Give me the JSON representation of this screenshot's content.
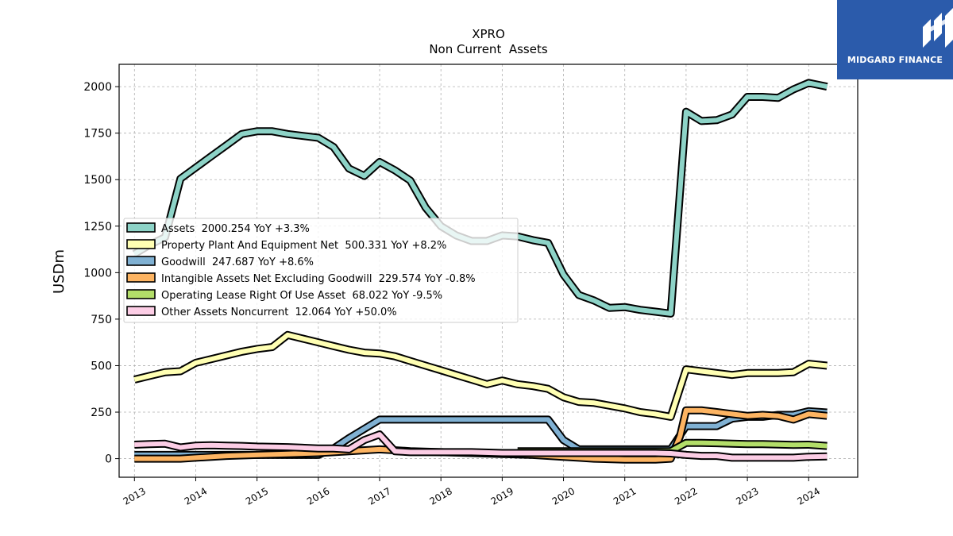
{
  "chart_data": {
    "type": "line",
    "title": "XPRO",
    "subtitle": "Non Current  Assets",
    "ylabel": "USDm",
    "xlabel": "",
    "xlim": [
      2012.75,
      2024.8
    ],
    "ylim": [
      -100,
      2120
    ],
    "yticks": [
      0,
      250,
      500,
      750,
      1000,
      1250,
      1500,
      1750,
      2000
    ],
    "xticks": [
      "2013",
      "2014",
      "2015",
      "2016",
      "2017",
      "2018",
      "2019",
      "2020",
      "2021",
      "2022",
      "2023",
      "2024"
    ],
    "grid": true,
    "legend_position": "center-left",
    "series": [
      {
        "name": "Assets",
        "legend": "Assets  2000.254 YoY +3.3%",
        "color": "#8dd3c7",
        "x": [
          2013.0,
          2013.25,
          2013.5,
          2013.75,
          2014.0,
          2014.25,
          2014.5,
          2014.75,
          2015.0,
          2015.25,
          2015.5,
          2015.75,
          2016.0,
          2016.25,
          2016.5,
          2016.75,
          2017.0,
          2017.25,
          2017.5,
          2017.75,
          2018.0,
          2018.25,
          2018.5,
          2018.75,
          2019.0,
          2019.25,
          2019.5,
          2019.75,
          2020.0,
          2020.25,
          2020.5,
          2020.75,
          2021.0,
          2021.25,
          2021.5,
          2021.75,
          2022.0,
          2022.25,
          2022.5,
          2022.75,
          2023.0,
          2023.25,
          2023.5,
          2023.75,
          2024.0,
          2024.3
        ],
        "values": [
          1100,
          1150,
          1190,
          1505,
          1565,
          1625,
          1685,
          1745,
          1760,
          1760,
          1745,
          1735,
          1725,
          1675,
          1560,
          1520,
          1595,
          1550,
          1495,
          1350,
          1250,
          1200,
          1170,
          1170,
          1200,
          1195,
          1175,
          1160,
          990,
          880,
          850,
          810,
          815,
          800,
          790,
          780,
          1865,
          1815,
          1820,
          1850,
          1945,
          1945,
          1940,
          1985,
          2020,
          2000
        ]
      },
      {
        "name": "Property Plant And Equipment Net",
        "legend": "Property Plant And Equipment Net  500.331 YoY +8.2%",
        "color": "#ffffb3",
        "x": [
          2013.0,
          2013.25,
          2013.5,
          2013.75,
          2014.0,
          2014.25,
          2014.5,
          2014.75,
          2015.0,
          2015.25,
          2015.5,
          2015.75,
          2016.0,
          2016.25,
          2016.5,
          2016.75,
          2017.0,
          2017.25,
          2017.5,
          2017.75,
          2018.0,
          2018.25,
          2018.5,
          2018.75,
          2019.0,
          2019.25,
          2019.5,
          2019.75,
          2020.0,
          2020.25,
          2020.5,
          2020.75,
          2021.0,
          2021.25,
          2021.5,
          2021.75,
          2022.0,
          2022.25,
          2022.5,
          2022.75,
          2023.0,
          2023.25,
          2023.5,
          2023.75,
          2024.0,
          2024.3
        ],
        "values": [
          425,
          445,
          465,
          470,
          515,
          535,
          555,
          575,
          590,
          600,
          665,
          645,
          625,
          605,
          585,
          570,
          565,
          550,
          525,
          500,
          475,
          450,
          425,
          400,
          420,
          400,
          390,
          375,
          330,
          305,
          300,
          285,
          270,
          250,
          240,
          225,
          480,
          470,
          460,
          450,
          460,
          460,
          460,
          465,
          510,
          500
        ]
      },
      {
        "name": "Goodwill",
        "legend": "Goodwill  247.687 YoY +8.6%",
        "color": "#80b1d3",
        "x": [
          2013.0,
          2013.5,
          2014.0,
          2014.5,
          2015.0,
          2015.5,
          2016.0,
          2016.25,
          2016.5,
          2016.75,
          2017.0,
          2017.25,
          2017.5,
          2017.75,
          2018.0,
          2018.5,
          2019.0,
          2019.5,
          2019.75,
          2020.0,
          2020.25,
          2020.5,
          2021.0,
          2021.5,
          2021.75,
          2022.0,
          2022.25,
          2022.5,
          2022.75,
          2023.0,
          2023.25,
          2023.5,
          2023.75,
          2024.0,
          2024.3
        ],
        "values": [
          20,
          20,
          20,
          20,
          20,
          20,
          20,
          55,
          110,
          160,
          210,
          210,
          210,
          210,
          210,
          210,
          210,
          210,
          210,
          100,
          50,
          50,
          50,
          50,
          50,
          175,
          175,
          175,
          215,
          225,
          225,
          235,
          235,
          255,
          248
        ]
      },
      {
        "name": "Intangible Assets Net Excluding Goodwill",
        "legend": "Intangible Assets Net Excluding Goodwill  229.574 YoY -0.8%",
        "color": "#fdb462",
        "x": [
          2013.0,
          2013.5,
          2013.75,
          2014.0,
          2014.5,
          2015.0,
          2015.5,
          2016.0,
          2016.5,
          2017.0,
          2017.5,
          2018.0,
          2018.5,
          2019.0,
          2019.5,
          2020.0,
          2020.25,
          2020.5,
          2021.0,
          2021.5,
          2021.75,
          2021.9,
          2022.0,
          2022.25,
          2022.5,
          2022.75,
          2023.0,
          2023.25,
          2023.5,
          2023.75,
          2024.0,
          2024.3
        ],
        "values": [
          0,
          0,
          0,
          5,
          15,
          20,
          25,
          30,
          40,
          50,
          40,
          35,
          30,
          25,
          20,
          10,
          5,
          0,
          -5,
          -5,
          0,
          120,
          260,
          260,
          250,
          240,
          230,
          235,
          230,
          210,
          240,
          230
        ]
      },
      {
        "name": "Operating Lease Right Of Use Asset",
        "legend": "Operating Lease Right Of Use Asset  68.022 YoY -9.5%",
        "color": "#b3de69",
        "x": [
          2019.25,
          2019.5,
          2019.75,
          2020.0,
          2020.5,
          2021.0,
          2021.5,
          2021.75,
          2022.0,
          2022.25,
          2022.5,
          2022.75,
          2023.0,
          2023.25,
          2023.5,
          2023.75,
          2024.0,
          2024.3
        ],
        "values": [
          40,
          40,
          40,
          40,
          40,
          40,
          40,
          40,
          85,
          85,
          83,
          80,
          78,
          78,
          76,
          74,
          75,
          68
        ]
      },
      {
        "name": "Other Assets Noncurrent",
        "legend": "Other Assets Noncurrent  12.064 YoY +50.0%",
        "color": "#fccde5",
        "x": [
          2013.0,
          2013.25,
          2013.5,
          2013.75,
          2014.0,
          2014.25,
          2014.5,
          2014.75,
          2015.0,
          2015.5,
          2016.0,
          2016.25,
          2016.5,
          2016.75,
          2017.0,
          2017.25,
          2017.5,
          2018.0,
          2018.5,
          2019.0,
          2019.5,
          2020.0,
          2020.5,
          2021.0,
          2021.5,
          2021.75,
          2022.0,
          2022.25,
          2022.5,
          2022.75,
          2023.0,
          2023.5,
          2023.75,
          2024.0,
          2024.3
        ],
        "values": [
          75,
          78,
          80,
          60,
          70,
          72,
          70,
          68,
          65,
          62,
          55,
          55,
          50,
          100,
          130,
          40,
          35,
          35,
          35,
          30,
          30,
          30,
          30,
          30,
          30,
          28,
          20,
          15,
          15,
          5,
          5,
          5,
          5,
          10,
          12
        ]
      }
    ]
  },
  "logo": {
    "text": "MIDGARD FINANCE",
    "background": "#2b5bab",
    "color": "#ffffff"
  }
}
